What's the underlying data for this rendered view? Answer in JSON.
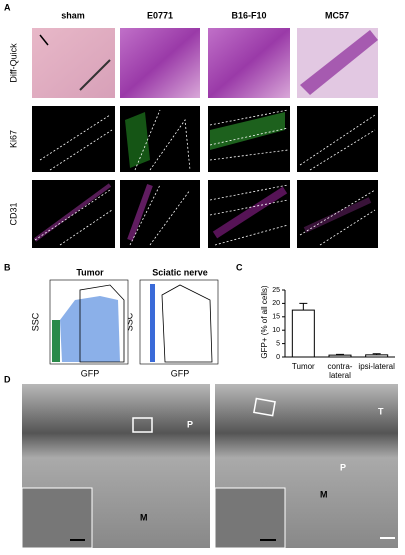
{
  "panel_labels": [
    "A",
    "B",
    "C",
    "D"
  ],
  "panel_a": {
    "columns": [
      "sham",
      "E0771",
      "B16-F10",
      "MC57"
    ],
    "rows": [
      "Diff-Quick",
      "Ki67",
      "CD31"
    ]
  },
  "panel_b": {
    "plots": [
      {
        "title": "Tumor",
        "ylabel": "SSC",
        "xlabel": "GFP"
      },
      {
        "title": "Sciatic nerve",
        "ylabel": "SSC",
        "xlabel": "GFP"
      }
    ]
  },
  "chart_data": {
    "type": "bar",
    "ylabel": "GFP+ (% of all cells)",
    "categories": [
      "Tumor",
      "contra-lateral",
      "ipsi-lateral"
    ],
    "values": [
      17.5,
      0.7,
      0.8
    ],
    "errors": [
      2.5,
      0.3,
      0.4
    ],
    "color": "#ffffff",
    "ylim": [
      0,
      25
    ],
    "yticks": [
      0,
      5,
      10,
      15,
      20,
      25
    ]
  },
  "panel_d": {
    "left_labels": [
      "P",
      "M"
    ],
    "right_labels": [
      "T",
      "P",
      "M"
    ]
  }
}
